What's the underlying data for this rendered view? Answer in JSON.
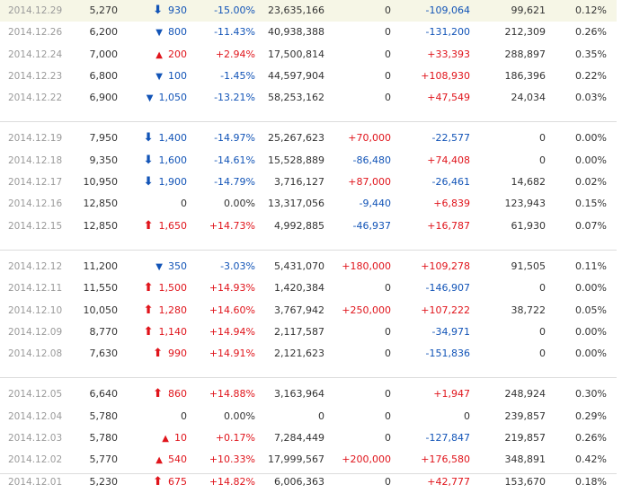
{
  "colors": {
    "up": "#e0141b",
    "down": "#1254b7",
    "highlight": "#f6f6e6",
    "date": "#9a9a9a"
  },
  "groups": [
    [
      {
        "date": "2014.12.29",
        "close": "5,270",
        "dir": "down",
        "icon": "arrow-down-icon",
        "chg": "930",
        "pct": "-15.00%",
        "vol": "23,635,166",
        "inst": "0",
        "inst_dir": "flat",
        "frn": "-109,064",
        "frn_dir": "down",
        "hold": "99,621",
        "rate": "0.12%"
      },
      {
        "date": "2014.12.26",
        "close": "6,200",
        "dir": "down",
        "icon": "triangle-down-icon",
        "chg": "800",
        "pct": "-11.43%",
        "vol": "40,938,388",
        "inst": "0",
        "inst_dir": "flat",
        "frn": "-131,200",
        "frn_dir": "down",
        "hold": "212,309",
        "rate": "0.26%"
      },
      {
        "date": "2014.12.24",
        "close": "7,000",
        "dir": "up",
        "icon": "triangle-up-icon",
        "chg": "200",
        "pct": "+2.94%",
        "vol": "17,500,814",
        "inst": "0",
        "inst_dir": "flat",
        "frn": "+33,393",
        "frn_dir": "up",
        "hold": "288,897",
        "rate": "0.35%"
      },
      {
        "date": "2014.12.23",
        "close": "6,800",
        "dir": "down",
        "icon": "triangle-down-icon",
        "chg": "100",
        "pct": "-1.45%",
        "vol": "44,597,904",
        "inst": "0",
        "inst_dir": "flat",
        "frn": "+108,930",
        "frn_dir": "up",
        "hold": "186,396",
        "rate": "0.22%"
      },
      {
        "date": "2014.12.22",
        "close": "6,900",
        "dir": "down",
        "icon": "triangle-down-icon",
        "chg": "1,050",
        "pct": "-13.21%",
        "vol": "58,253,162",
        "inst": "0",
        "inst_dir": "flat",
        "frn": "+47,549",
        "frn_dir": "up",
        "hold": "24,034",
        "rate": "0.03%"
      }
    ],
    [
      {
        "date": "2014.12.19",
        "close": "7,950",
        "dir": "down",
        "icon": "arrow-down-icon",
        "chg": "1,400",
        "pct": "-14.97%",
        "vol": "25,267,623",
        "inst": "+70,000",
        "inst_dir": "up",
        "frn": "-22,577",
        "frn_dir": "down",
        "hold": "0",
        "rate": "0.00%"
      },
      {
        "date": "2014.12.18",
        "close": "9,350",
        "dir": "down",
        "icon": "arrow-down-icon",
        "chg": "1,600",
        "pct": "-14.61%",
        "vol": "15,528,889",
        "inst": "-86,480",
        "inst_dir": "down",
        "frn": "+74,408",
        "frn_dir": "up",
        "hold": "0",
        "rate": "0.00%"
      },
      {
        "date": "2014.12.17",
        "close": "10,950",
        "dir": "down",
        "icon": "arrow-down-icon",
        "chg": "1,900",
        "pct": "-14.79%",
        "vol": "3,716,127",
        "inst": "+87,000",
        "inst_dir": "up",
        "frn": "-26,461",
        "frn_dir": "down",
        "hold": "14,682",
        "rate": "0.02%"
      },
      {
        "date": "2014.12.16",
        "close": "12,850",
        "dir": "flat",
        "icon": "",
        "chg": "0",
        "pct": "0.00%",
        "vol": "13,317,056",
        "inst": "-9,440",
        "inst_dir": "down",
        "frn": "+6,839",
        "frn_dir": "up",
        "hold": "123,943",
        "rate": "0.15%"
      },
      {
        "date": "2014.12.15",
        "close": "12,850",
        "dir": "up",
        "icon": "arrow-up-icon",
        "chg": "1,650",
        "pct": "+14.73%",
        "vol": "4,992,885",
        "inst": "-46,937",
        "inst_dir": "down",
        "frn": "+16,787",
        "frn_dir": "up",
        "hold": "61,930",
        "rate": "0.07%"
      }
    ],
    [
      {
        "date": "2014.12.12",
        "close": "11,200",
        "dir": "down",
        "icon": "triangle-down-icon",
        "chg": "350",
        "pct": "-3.03%",
        "vol": "5,431,070",
        "inst": "+180,000",
        "inst_dir": "up",
        "frn": "+109,278",
        "frn_dir": "up",
        "hold": "91,505",
        "rate": "0.11%"
      },
      {
        "date": "2014.12.11",
        "close": "11,550",
        "dir": "up",
        "icon": "arrow-up-icon",
        "chg": "1,500",
        "pct": "+14.93%",
        "vol": "1,420,384",
        "inst": "0",
        "inst_dir": "flat",
        "frn": "-146,907",
        "frn_dir": "down",
        "hold": "0",
        "rate": "0.00%"
      },
      {
        "date": "2014.12.10",
        "close": "10,050",
        "dir": "up",
        "icon": "arrow-up-icon",
        "chg": "1,280",
        "pct": "+14.60%",
        "vol": "3,767,942",
        "inst": "+250,000",
        "inst_dir": "up",
        "frn": "+107,222",
        "frn_dir": "up",
        "hold": "38,722",
        "rate": "0.05%"
      },
      {
        "date": "2014.12.09",
        "close": "8,770",
        "dir": "up",
        "icon": "arrow-up-icon",
        "chg": "1,140",
        "pct": "+14.94%",
        "vol": "2,117,587",
        "inst": "0",
        "inst_dir": "flat",
        "frn": "-34,971",
        "frn_dir": "down",
        "hold": "0",
        "rate": "0.00%"
      },
      {
        "date": "2014.12.08",
        "close": "7,630",
        "dir": "up",
        "icon": "arrow-up-icon",
        "chg": "990",
        "pct": "+14.91%",
        "vol": "2,121,623",
        "inst": "0",
        "inst_dir": "flat",
        "frn": "-151,836",
        "frn_dir": "down",
        "hold": "0",
        "rate": "0.00%"
      }
    ],
    [
      {
        "date": "2014.12.05",
        "close": "6,640",
        "dir": "up",
        "icon": "arrow-up-icon",
        "chg": "860",
        "pct": "+14.88%",
        "vol": "3,163,964",
        "inst": "0",
        "inst_dir": "flat",
        "frn": "+1,947",
        "frn_dir": "up",
        "hold": "248,924",
        "rate": "0.30%"
      },
      {
        "date": "2014.12.04",
        "close": "5,780",
        "dir": "flat",
        "icon": "",
        "chg": "0",
        "pct": "0.00%",
        "vol": "0",
        "inst": "0",
        "inst_dir": "flat",
        "frn": "0",
        "frn_dir": "flat",
        "hold": "239,857",
        "rate": "0.29%"
      },
      {
        "date": "2014.12.03",
        "close": "5,780",
        "dir": "up",
        "icon": "triangle-up-icon",
        "chg": "10",
        "pct": "+0.17%",
        "vol": "7,284,449",
        "inst": "0",
        "inst_dir": "flat",
        "frn": "-127,847",
        "frn_dir": "down",
        "hold": "219,857",
        "rate": "0.26%"
      },
      {
        "date": "2014.12.02",
        "close": "5,770",
        "dir": "up",
        "icon": "triangle-up-icon",
        "chg": "540",
        "pct": "+10.33%",
        "vol": "17,999,567",
        "inst": "+200,000",
        "inst_dir": "up",
        "frn": "+176,580",
        "frn_dir": "up",
        "hold": "348,891",
        "rate": "0.42%"
      },
      {
        "date": "2014.12.01",
        "close": "5,230",
        "dir": "up",
        "icon": "arrow-up-icon",
        "chg": "675",
        "pct": "+14.82%",
        "vol": "6,006,363",
        "inst": "0",
        "inst_dir": "flat",
        "frn": "+42,777",
        "frn_dir": "up",
        "hold": "153,670",
        "rate": "0.18%"
      }
    ]
  ]
}
